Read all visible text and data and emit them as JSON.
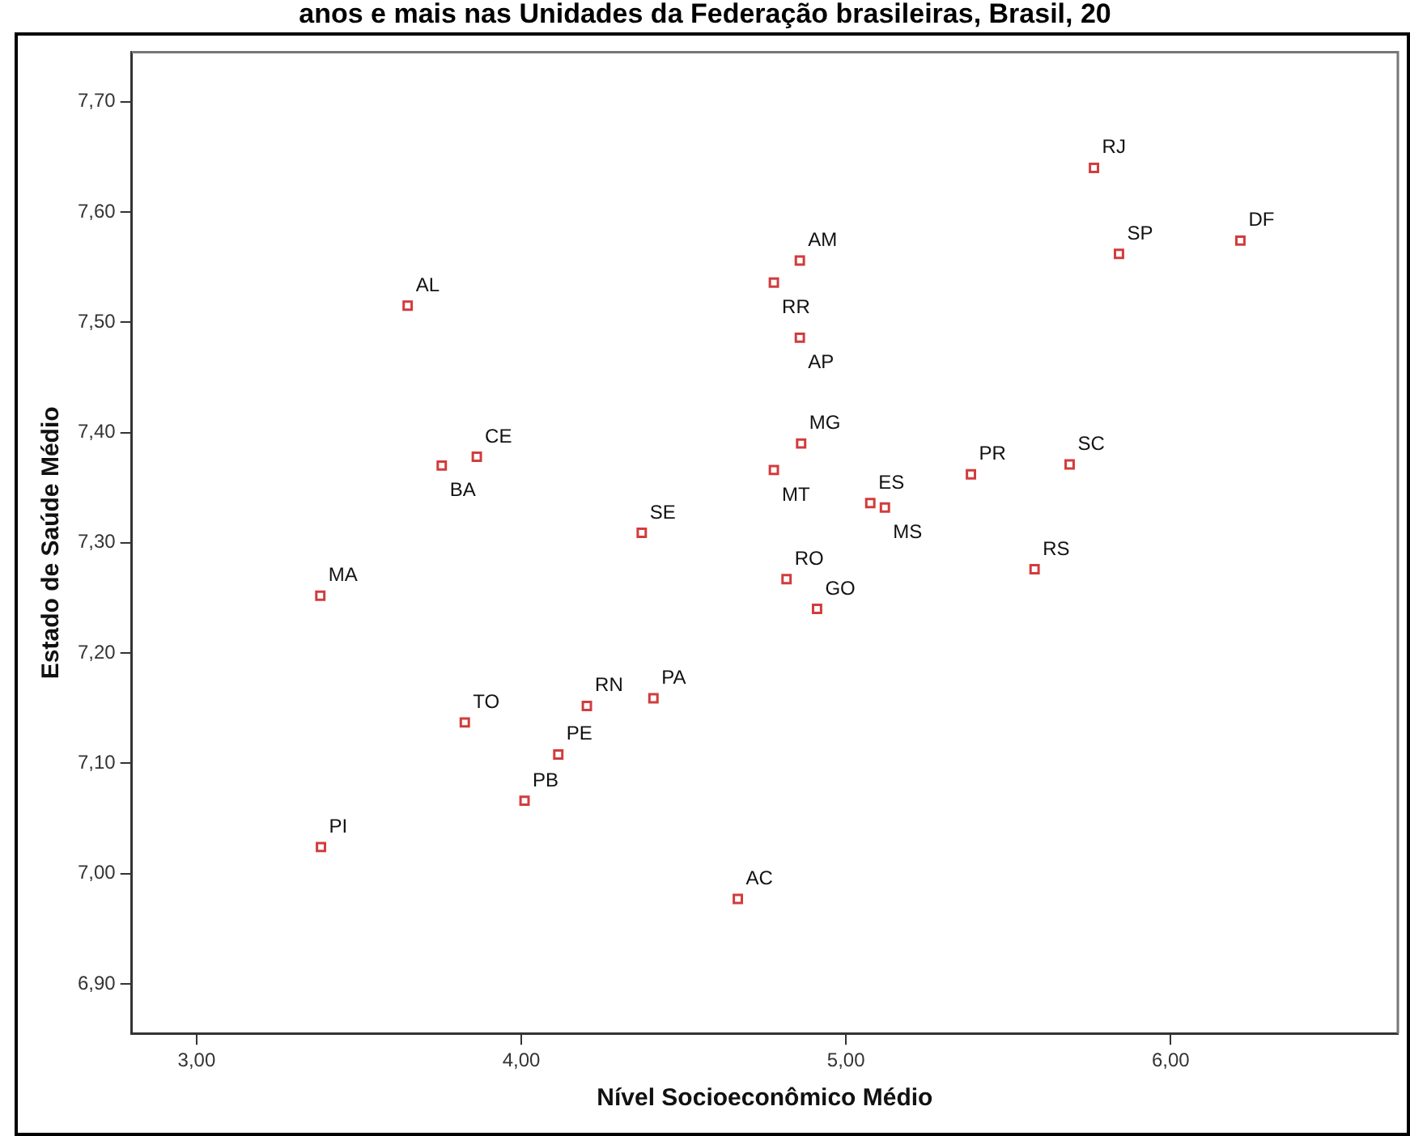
{
  "chart_data": {
    "type": "scatter",
    "title": "anos e mais nas Unidades da Federação brasileiras, Brasil, 20",
    "xlabel": "Nível Socioeconômico Médio",
    "ylabel": "Estado de Saúde Médio",
    "xlim": [
      2.8,
      6.7
    ],
    "ylim": [
      6.855,
      7.745
    ],
    "xticks": [
      {
        "value": 3,
        "label": "3,00"
      },
      {
        "value": 4,
        "label": "4,00"
      },
      {
        "value": 5,
        "label": "5,00"
      },
      {
        "value": 6,
        "label": "6,00"
      }
    ],
    "yticks": [
      {
        "value": 6.9,
        "label": "6,90"
      },
      {
        "value": 7.0,
        "label": "7,00"
      },
      {
        "value": 7.1,
        "label": "7,10"
      },
      {
        "value": 7.2,
        "label": "7,20"
      },
      {
        "value": 7.3,
        "label": "7,30"
      },
      {
        "value": 7.4,
        "label": "7,40"
      },
      {
        "value": 7.5,
        "label": "7,50"
      },
      {
        "value": 7.6,
        "label": "7,60"
      },
      {
        "value": 7.7,
        "label": "7,70"
      }
    ],
    "grid": false,
    "legend": false,
    "marker": "square",
    "series": [
      {
        "color": "#d23c3c",
        "x": [
          5.764,
          5.841,
          6.215,
          4.858,
          4.778,
          4.858,
          3.65,
          4.862,
          4.778,
          5.075,
          5.12,
          5.385,
          5.689,
          3.755,
          3.863,
          4.371,
          5.581,
          4.817,
          4.911,
          3.381,
          3.826,
          4.202,
          4.407,
          4.114,
          4.01,
          3.383,
          4.667
        ],
        "values": [
          7.64,
          7.562,
          7.574,
          7.556,
          7.536,
          7.486,
          7.515,
          7.39,
          7.366,
          7.336,
          7.332,
          7.362,
          7.371,
          7.37,
          7.378,
          7.309,
          7.276,
          7.267,
          7.24,
          7.252,
          7.137,
          7.152,
          7.159,
          7.108,
          7.066,
          7.024,
          6.977
        ],
        "value_labels": [
          "RJ",
          "SP",
          "DF",
          "AM",
          "RR",
          "AP",
          "AL",
          "MG",
          "MT",
          "ES",
          "MS",
          "PR",
          "SC",
          "BA",
          "CE",
          "SE",
          "RS",
          "RO",
          "GO",
          "MA",
          "TO",
          "RN",
          "PA",
          "PE",
          "PB",
          "PI",
          "AC"
        ]
      }
    ]
  }
}
